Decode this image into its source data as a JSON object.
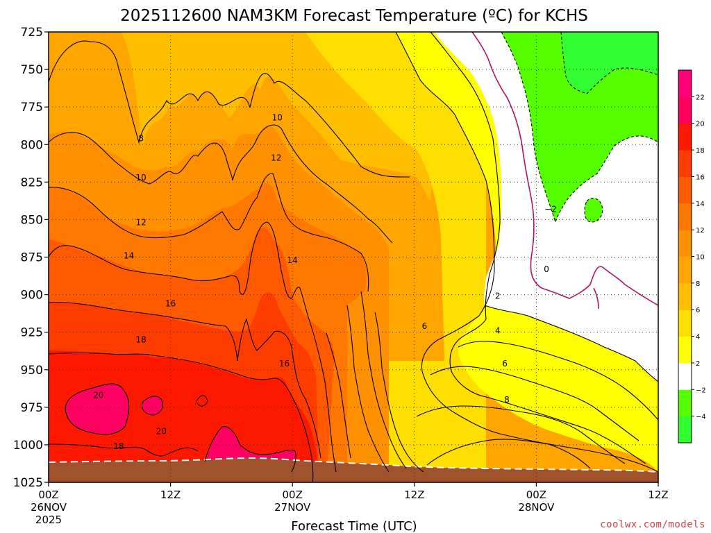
{
  "chart_data": {
    "type": "heatmap",
    "title": "2025112600 NAM3KM Forecast Temperature (ºC) for KCHS",
    "xlabel": "Forecast Time (UTC)",
    "ylabel": "",
    "x_ticks": [
      {
        "hour": 0,
        "label": "00Z",
        "date": "26NOV",
        "year": "2025"
      },
      {
        "hour": 12,
        "label": "12Z",
        "date": "",
        "year": ""
      },
      {
        "hour": 24,
        "label": "00Z",
        "date": "27NOV",
        "year": ""
      },
      {
        "hour": 36,
        "label": "12Z",
        "date": "",
        "year": ""
      },
      {
        "hour": 48,
        "label": "00Z",
        "date": "28NOV",
        "year": ""
      },
      {
        "hour": 60,
        "label": "12Z",
        "date": "",
        "year": ""
      }
    ],
    "xlim": [
      0,
      60
    ],
    "y_ticks": [
      725,
      750,
      775,
      800,
      825,
      850,
      875,
      900,
      925,
      950,
      975,
      1000,
      1025
    ],
    "ylim": [
      725,
      1025
    ],
    "y_inverted": true,
    "grid": true,
    "contour_labels": [
      {
        "text": "8",
        "hour": 9.1,
        "pressure": 796
      },
      {
        "text": "10",
        "hour": 22.5,
        "pressure": 782
      },
      {
        "text": "10",
        "hour": 9.1,
        "pressure": 822
      },
      {
        "text": "12",
        "hour": 22.4,
        "pressure": 809
      },
      {
        "text": "12",
        "hour": 9.1,
        "pressure": 852
      },
      {
        "text": "14",
        "hour": 7.9,
        "pressure": 874
      },
      {
        "text": "14",
        "hour": 24.0,
        "pressure": 877
      },
      {
        "text": "16",
        "hour": 12.0,
        "pressure": 906
      },
      {
        "text": "16",
        "hour": 23.2,
        "pressure": 946
      },
      {
        "text": "18",
        "hour": 9.1,
        "pressure": 930
      },
      {
        "text": "20",
        "hour": 4.9,
        "pressure": 967
      },
      {
        "text": "20",
        "hour": 11.1,
        "pressure": 991
      },
      {
        "text": "18",
        "hour": 6.9,
        "pressure": 1001
      },
      {
        "text": "6",
        "hour": 37.0,
        "pressure": 921
      },
      {
        "text": "2",
        "hour": 44.2,
        "pressure": 901
      },
      {
        "text": "4",
        "hour": 44.2,
        "pressure": 924
      },
      {
        "text": "6",
        "hour": 44.9,
        "pressure": 946
      },
      {
        "text": "8",
        "hour": 45.1,
        "pressure": 970
      },
      {
        "text": "0",
        "hour": 49.0,
        "pressure": 883
      },
      {
        "text": "−2",
        "hour": 49.4,
        "pressure": 843
      }
    ],
    "colorbar": {
      "levels": [
        -4,
        -2,
        2,
        4,
        6,
        8,
        10,
        12,
        14,
        16,
        18,
        20,
        22
      ],
      "labels": [
        "−4",
        "−2",
        "2",
        "4",
        "6",
        "8",
        "10",
        "12",
        "14",
        "16",
        "18",
        "20",
        "22"
      ],
      "colors": [
        "#32ff32",
        "#56ff00",
        "#ffffff",
        "#ffff00",
        "#ffdf00",
        "#ffbe00",
        "#ffa500",
        "#ff9000",
        "#ff7800",
        "#ff5a00",
        "#ff3c00",
        "#ff1800",
        "#ff0060",
        "#ff0078"
      ]
    },
    "ground_color": "#a0522d",
    "credit": "coolwx.com/models"
  }
}
